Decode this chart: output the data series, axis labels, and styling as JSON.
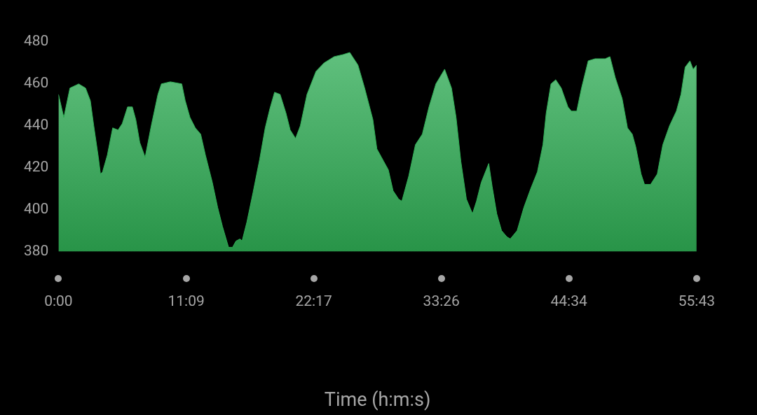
{
  "chart_data": {
    "type": "area",
    "xlabel": "Time (h:m:s)",
    "x": [
      0,
      28,
      60,
      106,
      142,
      167,
      185,
      209,
      220,
      231,
      256,
      284,
      312,
      334,
      362,
      387,
      405,
      426,
      454,
      486,
      521,
      539,
      586,
      646,
      664,
      689,
      717,
      745,
      770,
      806,
      834,
      859,
      891,
      912,
      930,
      951,
      962,
      987,
      1019,
      1054,
      1083,
      1107,
      1132,
      1161,
      1192,
      1214,
      1242,
      1267,
      1302,
      1349,
      1391,
      1444,
      1491,
      1526,
      1569,
      1604,
      1647,
      1668,
      1704,
      1728,
      1753,
      1782,
      1799,
      1835,
      1870,
      1906,
      1941,
      1977,
      2023,
      2059,
      2083,
      2108,
      2137,
      2169,
      2190,
      2215,
      2254,
      2272,
      2296,
      2321,
      2349,
      2367,
      2403,
      2438,
      2474,
      2509,
      2538,
      2555,
      2580,
      2605,
      2634,
      2669,
      2687,
      2715,
      2740,
      2775,
      2811,
      2864,
      2889,
      2917,
      2953,
      2981,
      3006,
      3024,
      3052,
      3070,
      3102,
      3137,
      3166,
      3201,
      3237,
      3261,
      3283,
      3308,
      3325,
      3343
    ],
    "series": [
      {
        "color": "#2fae55",
        "values": [
          455,
          444,
          458,
          460,
          458,
          452,
          440,
          425,
          417,
          418,
          426,
          439,
          438,
          441,
          449,
          449,
          443,
          432,
          425,
          440,
          455,
          460,
          461,
          460,
          452,
          444,
          439,
          436,
          426,
          413,
          401,
          392,
          382,
          382,
          385,
          386,
          385,
          394,
          408,
          424,
          439,
          448,
          456,
          455,
          446,
          438,
          434,
          440,
          455,
          466,
          470,
          473,
          474,
          475,
          469,
          458,
          443,
          429,
          423,
          419,
          409,
          405,
          404,
          416,
          431,
          436,
          449,
          460,
          467,
          458,
          444,
          423,
          405,
          398,
          404,
          413,
          422,
          411,
          398,
          390,
          387,
          386,
          390,
          401,
          410,
          418,
          431,
          446,
          460,
          462,
          458,
          449,
          447,
          447,
          458,
          471,
          472,
          472,
          473,
          463,
          453,
          439,
          436,
          430,
          417,
          412,
          412,
          417,
          431,
          440,
          447,
          455,
          468,
          471,
          467,
          469
        ]
      }
    ],
    "xlim": [
      0,
      3343
    ],
    "xticks": [
      {
        "value": 0,
        "label": "0:00"
      },
      {
        "value": 669,
        "label": "11:09"
      },
      {
        "value": 1337,
        "label": "22:17"
      },
      {
        "value": 2006,
        "label": "33:26"
      },
      {
        "value": 2674,
        "label": "44:34"
      },
      {
        "value": 3343,
        "label": "55:43"
      }
    ],
    "ylim": [
      380,
      480
    ],
    "yticks": [
      380,
      400,
      420,
      440,
      460,
      480
    ],
    "grid": false,
    "legend": false
  }
}
